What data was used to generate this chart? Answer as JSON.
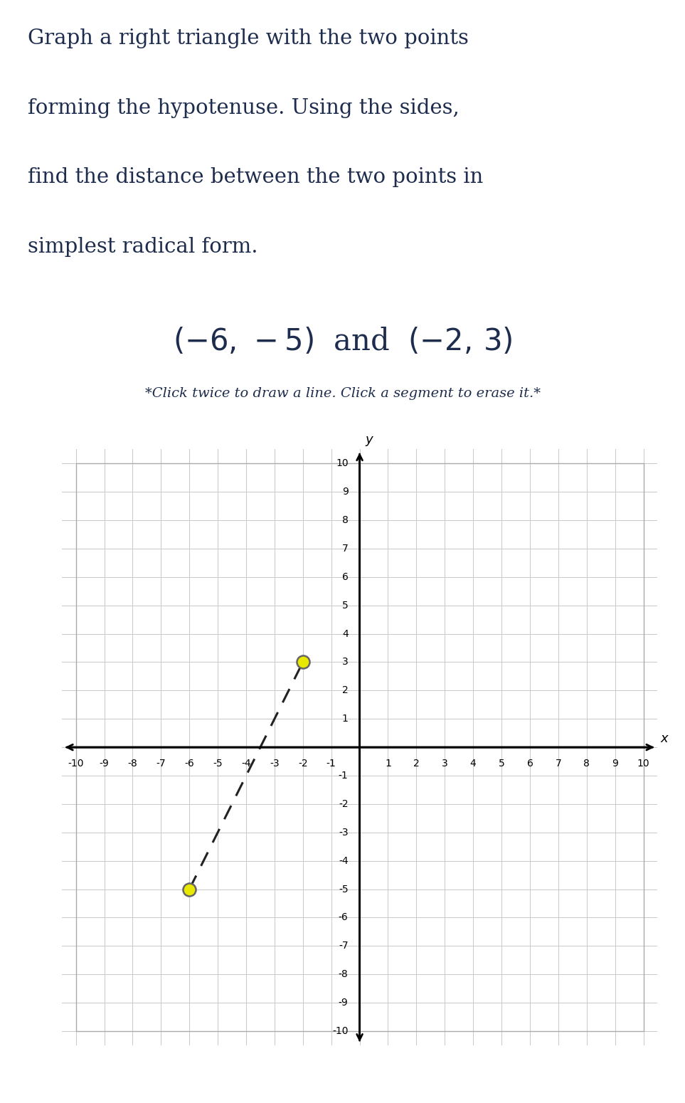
{
  "title_line1": "Graph a right triangle with the two points",
  "title_line2": "forming the hypotenuse. Using the sides,",
  "title_line3": "find the distance between the two points in",
  "title_line4": "simplest radical form.",
  "instruction_text": "*Click twice to draw a line. Click a segment to erase it.*",
  "point1": [
    -6,
    -5
  ],
  "point2": [
    -2,
    3
  ],
  "xlim": [
    -10.5,
    10.5
  ],
  "ylim": [
    -10.5,
    10.5
  ],
  "xticks": [
    -10,
    -9,
    -8,
    -7,
    -6,
    -5,
    -4,
    -3,
    -2,
    -1,
    1,
    2,
    3,
    4,
    5,
    6,
    7,
    8,
    9,
    10
  ],
  "yticks": [
    -10,
    -9,
    -8,
    -7,
    -6,
    -5,
    -4,
    -3,
    -2,
    -1,
    1,
    2,
    3,
    4,
    5,
    6,
    7,
    8,
    9,
    10
  ],
  "grid_color": "#c8c8c8",
  "point_color": "#e8e800",
  "point_edge_color": "#666666",
  "dashed_line_color": "#222222",
  "background_color": "#ffffff",
  "text_color": "#1e2d4e",
  "border_color": "#aaaaaa",
  "title_fontsize": 21,
  "points_fontsize": 30,
  "instruction_fontsize": 14,
  "tick_fontsize": 10
}
